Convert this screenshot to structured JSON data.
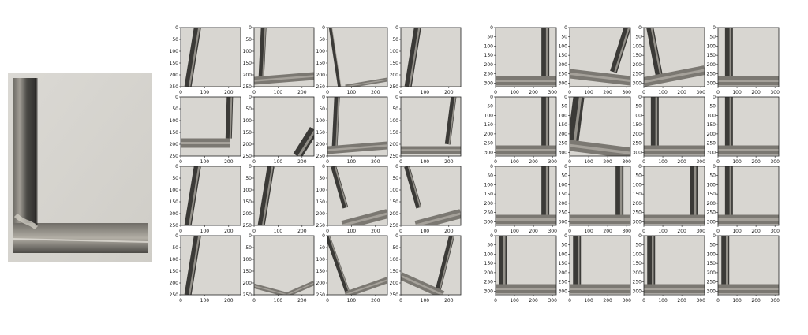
{
  "original_photo": {
    "name": "original-photo"
  },
  "left_grid": {
    "rows": 4,
    "cols": 4,
    "x_ticks": [
      "0",
      "100",
      "200"
    ],
    "y_ticks": [
      "0",
      "50",
      "100",
      "150",
      "200",
      "250"
    ],
    "tiles": [
      "lv-left",
      "lv-left-bottom",
      "lv-left-bottom-soft",
      "lv-left",
      "lv-bottom-right",
      "lv-right-edge",
      "lv-left-bottom",
      "lv-right-bottom",
      "lv-left",
      "lv-left",
      "lv-diag-bottom",
      "lv-diag-bottom",
      "lv-left",
      "lv-v-bottom",
      "lv-diag-cross",
      "lv-right-diag"
    ]
  },
  "right_grid": {
    "rows": 4,
    "cols": 4,
    "x_ticks": [
      "0",
      "100",
      "200",
      "300"
    ],
    "y_ticks": [
      "0",
      "50",
      "100",
      "150",
      "200",
      "250",
      "300"
    ],
    "tiles": [
      "rv-right",
      "rv-right-tilt",
      "rv-left-tilt",
      "rv-left",
      "rv-right",
      "rv-left-tilt-big",
      "rv-left",
      "rv-left",
      "rv-right",
      "rv-right",
      "rv-right",
      "rv-left",
      "rv-left-wide",
      "rv-left-wide",
      "rv-left-wide",
      "rv-left-wide"
    ]
  },
  "colors": {
    "paper": "#d8d6d1",
    "wood_dark": "#3b3a37",
    "wood_mid": "#7b7872",
    "wood_light": "#b7b3ab",
    "axis": "#222222"
  }
}
